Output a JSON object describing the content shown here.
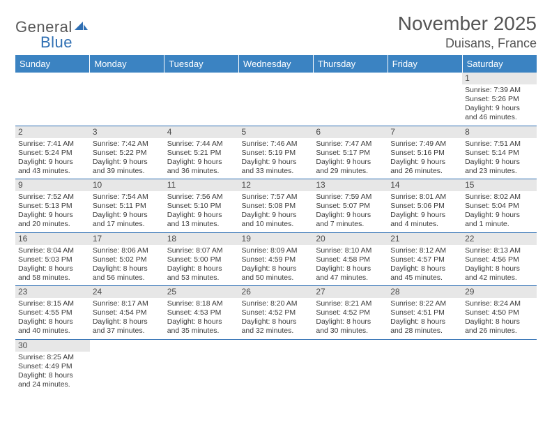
{
  "logo": {
    "text1": "General",
    "text2": "Blue"
  },
  "title": "November 2025",
  "location": "Duisans, France",
  "colors": {
    "header_bg": "#3b83c2",
    "header_text": "#ffffff",
    "cell_border": "#2f6fb3",
    "daynum_bg": "#e7e7e7",
    "body_text": "#3a3a3a",
    "title_text": "#555555",
    "logo_gray": "#585858",
    "logo_blue": "#2f6fb3"
  },
  "typography": {
    "title_fontsize": 28,
    "location_fontsize": 18,
    "dayhead_fontsize": 13,
    "cell_fontsize": 10.5,
    "daynum_fontsize": 12
  },
  "dayHeaders": [
    "Sunday",
    "Monday",
    "Tuesday",
    "Wednesday",
    "Thursday",
    "Friday",
    "Saturday"
  ],
  "weeks": [
    [
      null,
      null,
      null,
      null,
      null,
      null,
      {
        "n": "1",
        "sr": "Sunrise: 7:39 AM",
        "ss": "Sunset: 5:26 PM",
        "dl": "Daylight: 9 hours and 46 minutes."
      }
    ],
    [
      {
        "n": "2",
        "sr": "Sunrise: 7:41 AM",
        "ss": "Sunset: 5:24 PM",
        "dl": "Daylight: 9 hours and 43 minutes."
      },
      {
        "n": "3",
        "sr": "Sunrise: 7:42 AM",
        "ss": "Sunset: 5:22 PM",
        "dl": "Daylight: 9 hours and 39 minutes."
      },
      {
        "n": "4",
        "sr": "Sunrise: 7:44 AM",
        "ss": "Sunset: 5:21 PM",
        "dl": "Daylight: 9 hours and 36 minutes."
      },
      {
        "n": "5",
        "sr": "Sunrise: 7:46 AM",
        "ss": "Sunset: 5:19 PM",
        "dl": "Daylight: 9 hours and 33 minutes."
      },
      {
        "n": "6",
        "sr": "Sunrise: 7:47 AM",
        "ss": "Sunset: 5:17 PM",
        "dl": "Daylight: 9 hours and 29 minutes."
      },
      {
        "n": "7",
        "sr": "Sunrise: 7:49 AM",
        "ss": "Sunset: 5:16 PM",
        "dl": "Daylight: 9 hours and 26 minutes."
      },
      {
        "n": "8",
        "sr": "Sunrise: 7:51 AM",
        "ss": "Sunset: 5:14 PM",
        "dl": "Daylight: 9 hours and 23 minutes."
      }
    ],
    [
      {
        "n": "9",
        "sr": "Sunrise: 7:52 AM",
        "ss": "Sunset: 5:13 PM",
        "dl": "Daylight: 9 hours and 20 minutes."
      },
      {
        "n": "10",
        "sr": "Sunrise: 7:54 AM",
        "ss": "Sunset: 5:11 PM",
        "dl": "Daylight: 9 hours and 17 minutes."
      },
      {
        "n": "11",
        "sr": "Sunrise: 7:56 AM",
        "ss": "Sunset: 5:10 PM",
        "dl": "Daylight: 9 hours and 13 minutes."
      },
      {
        "n": "12",
        "sr": "Sunrise: 7:57 AM",
        "ss": "Sunset: 5:08 PM",
        "dl": "Daylight: 9 hours and 10 minutes."
      },
      {
        "n": "13",
        "sr": "Sunrise: 7:59 AM",
        "ss": "Sunset: 5:07 PM",
        "dl": "Daylight: 9 hours and 7 minutes."
      },
      {
        "n": "14",
        "sr": "Sunrise: 8:01 AM",
        "ss": "Sunset: 5:06 PM",
        "dl": "Daylight: 9 hours and 4 minutes."
      },
      {
        "n": "15",
        "sr": "Sunrise: 8:02 AM",
        "ss": "Sunset: 5:04 PM",
        "dl": "Daylight: 9 hours and 1 minute."
      }
    ],
    [
      {
        "n": "16",
        "sr": "Sunrise: 8:04 AM",
        "ss": "Sunset: 5:03 PM",
        "dl": "Daylight: 8 hours and 58 minutes."
      },
      {
        "n": "17",
        "sr": "Sunrise: 8:06 AM",
        "ss": "Sunset: 5:02 PM",
        "dl": "Daylight: 8 hours and 56 minutes."
      },
      {
        "n": "18",
        "sr": "Sunrise: 8:07 AM",
        "ss": "Sunset: 5:00 PM",
        "dl": "Daylight: 8 hours and 53 minutes."
      },
      {
        "n": "19",
        "sr": "Sunrise: 8:09 AM",
        "ss": "Sunset: 4:59 PM",
        "dl": "Daylight: 8 hours and 50 minutes."
      },
      {
        "n": "20",
        "sr": "Sunrise: 8:10 AM",
        "ss": "Sunset: 4:58 PM",
        "dl": "Daylight: 8 hours and 47 minutes."
      },
      {
        "n": "21",
        "sr": "Sunrise: 8:12 AM",
        "ss": "Sunset: 4:57 PM",
        "dl": "Daylight: 8 hours and 45 minutes."
      },
      {
        "n": "22",
        "sr": "Sunrise: 8:13 AM",
        "ss": "Sunset: 4:56 PM",
        "dl": "Daylight: 8 hours and 42 minutes."
      }
    ],
    [
      {
        "n": "23",
        "sr": "Sunrise: 8:15 AM",
        "ss": "Sunset: 4:55 PM",
        "dl": "Daylight: 8 hours and 40 minutes."
      },
      {
        "n": "24",
        "sr": "Sunrise: 8:17 AM",
        "ss": "Sunset: 4:54 PM",
        "dl": "Daylight: 8 hours and 37 minutes."
      },
      {
        "n": "25",
        "sr": "Sunrise: 8:18 AM",
        "ss": "Sunset: 4:53 PM",
        "dl": "Daylight: 8 hours and 35 minutes."
      },
      {
        "n": "26",
        "sr": "Sunrise: 8:20 AM",
        "ss": "Sunset: 4:52 PM",
        "dl": "Daylight: 8 hours and 32 minutes."
      },
      {
        "n": "27",
        "sr": "Sunrise: 8:21 AM",
        "ss": "Sunset: 4:52 PM",
        "dl": "Daylight: 8 hours and 30 minutes."
      },
      {
        "n": "28",
        "sr": "Sunrise: 8:22 AM",
        "ss": "Sunset: 4:51 PM",
        "dl": "Daylight: 8 hours and 28 minutes."
      },
      {
        "n": "29",
        "sr": "Sunrise: 8:24 AM",
        "ss": "Sunset: 4:50 PM",
        "dl": "Daylight: 8 hours and 26 minutes."
      }
    ],
    [
      {
        "n": "30",
        "sr": "Sunrise: 8:25 AM",
        "ss": "Sunset: 4:49 PM",
        "dl": "Daylight: 8 hours and 24 minutes."
      },
      null,
      null,
      null,
      null,
      null,
      null
    ]
  ]
}
